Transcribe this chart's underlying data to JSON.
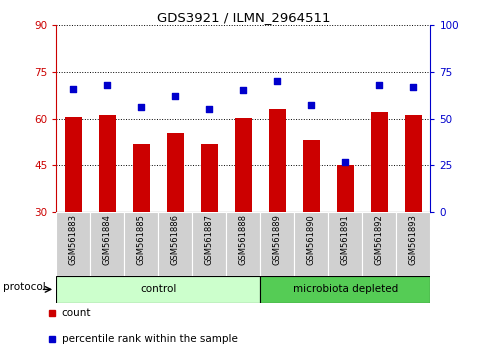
{
  "title": "GDS3921 / ILMN_2964511",
  "samples": [
    "GSM561883",
    "GSM561884",
    "GSM561885",
    "GSM561886",
    "GSM561887",
    "GSM561888",
    "GSM561889",
    "GSM561890",
    "GSM561891",
    "GSM561892",
    "GSM561893"
  ],
  "counts": [
    60.5,
    61.3,
    52.0,
    55.5,
    52.0,
    60.2,
    63.0,
    53.0,
    45.2,
    62.0,
    61.0
  ],
  "percentile_ranks": [
    66,
    68,
    56,
    62,
    55,
    65,
    70,
    57,
    27,
    68,
    67
  ],
  "bar_color": "#cc0000",
  "dot_color": "#0000cc",
  "ylim_left": [
    30,
    90
  ],
  "ylim_right": [
    0,
    100
  ],
  "yticks_left": [
    30,
    45,
    60,
    75,
    90
  ],
  "yticks_right": [
    0,
    25,
    50,
    75,
    100
  ],
  "legend_items": [
    {
      "label": "count",
      "color": "#cc0000"
    },
    {
      "label": "percentile rank within the sample",
      "color": "#0000cc"
    }
  ],
  "protocol_label": "protocol",
  "background_color": "#ffffff",
  "bar_bottom": 30,
  "control_color_light": "#ccffcc",
  "control_color_dark": "#55cc55",
  "label_box_color": "#d0d0d0"
}
